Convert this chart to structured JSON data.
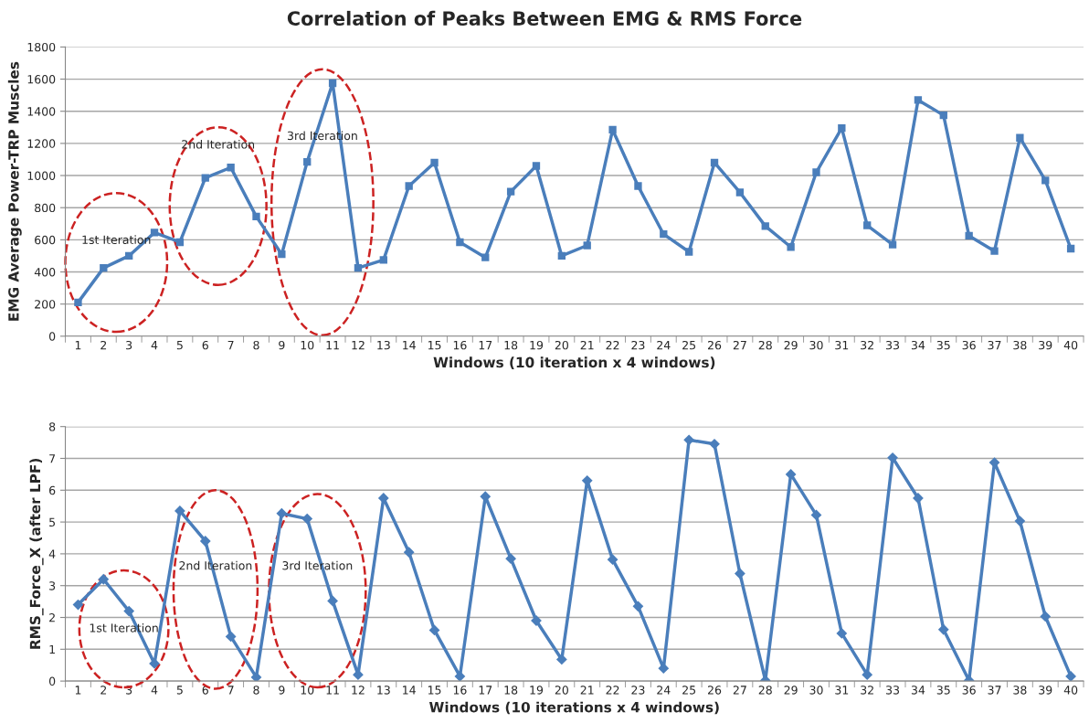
{
  "chart_data": [
    {
      "type": "line",
      "title": "Correlation of Peaks Between EMG & RMS Force",
      "xlabel": "Windows (10 iteration x 4 windows)",
      "ylabel": "EMG Average Power-TRP Muscles",
      "categories": [
        "1",
        "2",
        "3",
        "4",
        "5",
        "6",
        "7",
        "8",
        "9",
        "10",
        "11",
        "12",
        "13",
        "14",
        "15",
        "16",
        "17",
        "18",
        "19",
        "20",
        "21",
        "22",
        "23",
        "24",
        "25",
        "26",
        "27",
        "28",
        "29",
        "30",
        "31",
        "32",
        "33",
        "34",
        "35",
        "36",
        "37",
        "38",
        "39",
        "40"
      ],
      "series": [
        {
          "color": "#4a7ebb",
          "values": [
            210,
            425,
            500,
            645,
            585,
            985,
            1050,
            745,
            510,
            1085,
            1575,
            425,
            475,
            935,
            1080,
            585,
            490,
            900,
            1060,
            500,
            565,
            1285,
            935,
            635,
            525,
            1080,
            895,
            685,
            555,
            1020,
            1295,
            690,
            570,
            1470,
            1375,
            625,
            530,
            1235,
            970,
            545
          ]
        }
      ],
      "marker": "square",
      "ylim": [
        0,
        1800
      ],
      "yticks": [
        0,
        200,
        400,
        600,
        800,
        1000,
        1200,
        1400,
        1600,
        1800
      ],
      "grid": "y",
      "legend": false,
      "annotations": [
        "1st Iteration",
        "2nd Iteration",
        "3rd Iteration"
      ]
    },
    {
      "type": "line",
      "xlabel": "Windows (10 iterations x 4 windows)",
      "ylabel": "RMS_Force_X (after LPF)",
      "categories": [
        "1",
        "2",
        "3",
        "4",
        "5",
        "6",
        "7",
        "8",
        "9",
        "10",
        "11",
        "12",
        "13",
        "14",
        "15",
        "16",
        "17",
        "18",
        "19",
        "20",
        "21",
        "22",
        "23",
        "24",
        "25",
        "26",
        "27",
        "28",
        "29",
        "30",
        "31",
        "32",
        "33",
        "34",
        "35",
        "36",
        "37",
        "38",
        "39",
        "40"
      ],
      "series": [
        {
          "color": "#4a7ebb",
          "values": [
            2.4,
            3.2,
            2.2,
            0.55,
            5.35,
            4.4,
            1.4,
            0.12,
            5.27,
            5.1,
            2.52,
            0.2,
            5.75,
            4.05,
            1.6,
            0.15,
            5.8,
            3.85,
            1.9,
            0.68,
            6.3,
            3.82,
            2.35,
            0.4,
            7.58,
            7.45,
            3.38,
            0.02,
            6.5,
            5.22,
            1.5,
            0.2,
            7.02,
            5.75,
            1.62,
            0.02,
            6.87,
            5.03,
            2.03,
            0.15
          ]
        }
      ],
      "marker": "diamond",
      "ylim": [
        0,
        8
      ],
      "yticks": [
        0,
        1,
        2,
        3,
        4,
        5,
        6,
        7,
        8
      ],
      "grid": "y",
      "legend": false,
      "annotations": [
        "1st Iteration",
        "2nd Iteration",
        "3rd Iteration"
      ]
    }
  ]
}
